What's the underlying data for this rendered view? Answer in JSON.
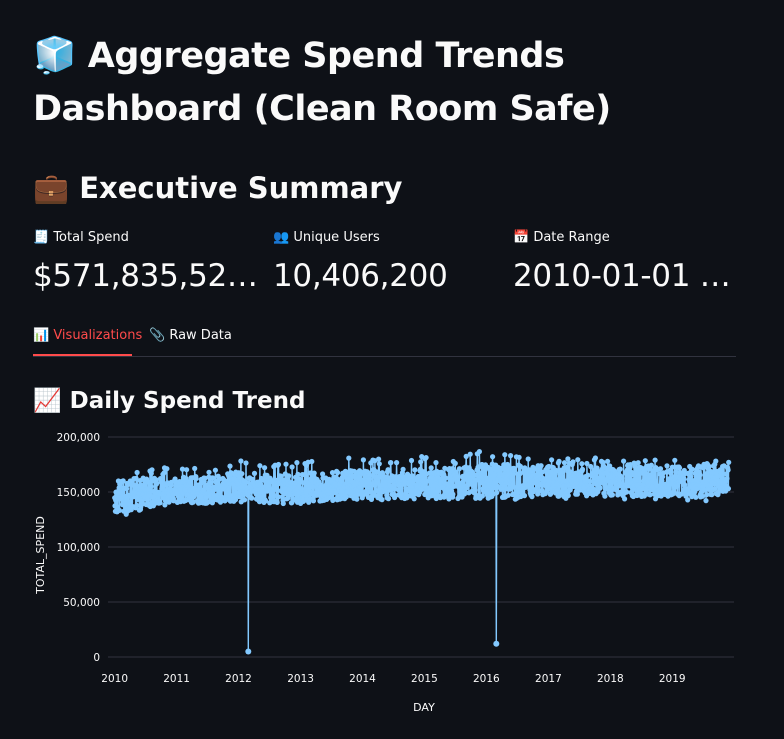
{
  "title": {
    "icon": "ice-cube-icon",
    "icon_glyph": "🧊",
    "text": "Aggregate Spend Trends Dashboard (Clean Room Safe)"
  },
  "summary": {
    "icon": "briefcase-icon",
    "icon_glyph": "💼",
    "heading": "Executive Summary"
  },
  "metrics": [
    {
      "icon": "receipt-icon",
      "icon_glyph": "🧾",
      "label": "Total Spend",
      "value": "$571,835,52…"
    },
    {
      "icon": "users-icon",
      "icon_glyph": "👥",
      "label": "Unique Users",
      "value": "10,406,200"
    },
    {
      "icon": "calendar-icon",
      "icon_glyph": "📅",
      "label": "Date Range",
      "value": "2010-01-01 …"
    }
  ],
  "tabs": [
    {
      "icon": "bar-chart-icon",
      "icon_glyph": "📊",
      "label": "Visualizations",
      "active": true
    },
    {
      "icon": "paperclip-icon",
      "icon_glyph": "📎",
      "label": "Raw Data",
      "active": false
    }
  ],
  "chart_section": {
    "icon": "chart-increasing-icon",
    "icon_glyph": "📈",
    "heading": "Daily Spend Trend"
  },
  "colors": {
    "background": "#0e1117",
    "accent": "#ff4b4b",
    "series": "#83c9ff",
    "grid": "#31333f"
  },
  "chart_data": {
    "type": "line",
    "x_type": "date",
    "x_range": [
      "2009-12-28",
      "2019-12-31"
    ],
    "xlabel": "DAY",
    "ylabel": "TOTAL_SPEND",
    "ylim": [
      0,
      200000
    ],
    "y_ticks": [
      "200,000",
      "150,000",
      "100,000",
      "50,000",
      "0"
    ],
    "x_ticks": [
      "2010",
      "2011",
      "2012",
      "2013",
      "2014",
      "2015",
      "2016",
      "2017",
      "2018",
      "2019"
    ],
    "markers": true,
    "grid": true,
    "legend": "none",
    "series": [
      {
        "x": [
          "2010-01",
          "2010-07",
          "2011-01",
          "2011-07",
          "2012-01",
          "2012-07",
          "2013-01",
          "2013-07",
          "2014-01",
          "2014-07",
          "2015-01",
          "2015-07",
          "2016-01",
          "2016-07",
          "2017-01",
          "2017-07",
          "2018-01",
          "2018-07",
          "2019-01",
          "2019-07",
          "2019-12"
        ],
        "low": [
          125000,
          135000,
          140000,
          140000,
          143000,
          142000,
          140000,
          145000,
          145000,
          142000,
          145000,
          143000,
          145000,
          143000,
          145000,
          142000,
          145000,
          142000,
          143000,
          140000,
          145000
        ],
        "mid": [
          145000,
          150000,
          152000,
          152000,
          155000,
          153000,
          153000,
          155000,
          157000,
          157000,
          158000,
          158000,
          160000,
          160000,
          160000,
          159000,
          160000,
          160000,
          160000,
          160000,
          162000
        ],
        "high": [
          165000,
          172000,
          172000,
          173000,
          180000,
          176000,
          178000,
          180000,
          182000,
          180000,
          183000,
          180000,
          188000,
          183000,
          182000,
          180000,
          182000,
          180000,
          182000,
          182000,
          178000
        ]
      }
    ],
    "outliers": [
      {
        "x": "2012-02-28",
        "y": 5000
      },
      {
        "x": "2016-02-29",
        "y": 12000
      }
    ]
  }
}
